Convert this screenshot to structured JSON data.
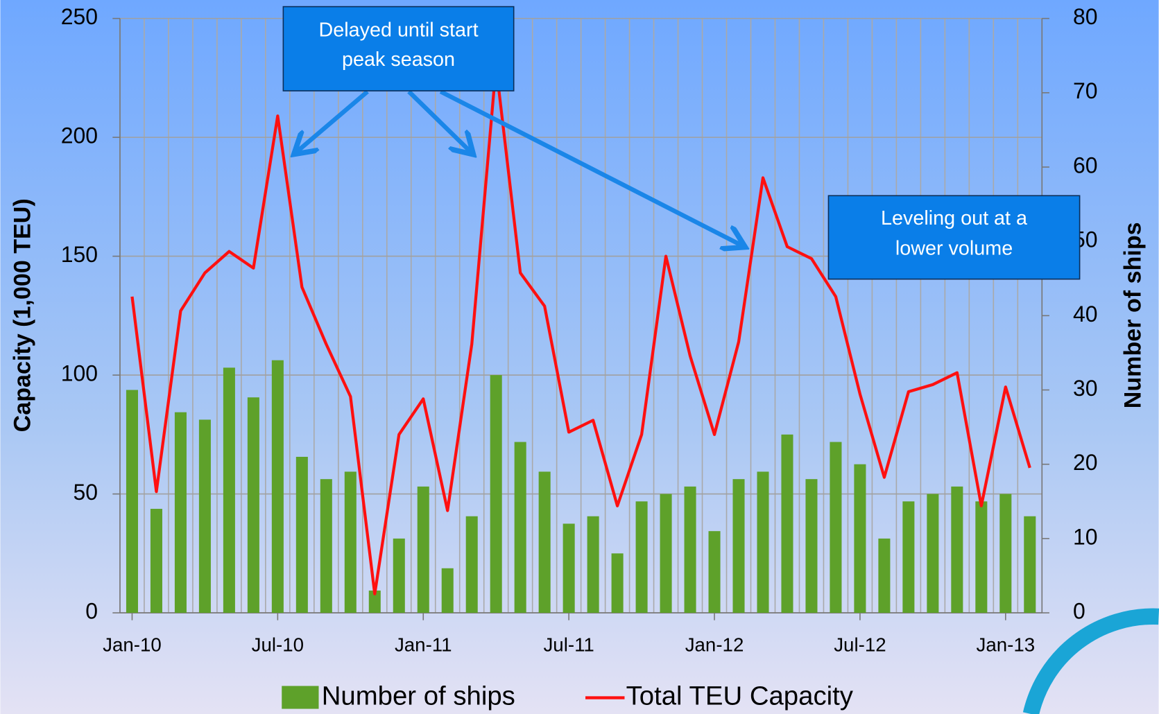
{
  "chart_data": {
    "type": "bar_line",
    "y_label": "Capacity (1,000 TEU)",
    "y2_label": "Number of ships",
    "categories": [
      "Jan-10",
      null,
      null,
      null,
      null,
      null,
      "Jul-10",
      null,
      null,
      null,
      null,
      null,
      "Jan-11",
      null,
      null,
      null,
      null,
      null,
      "Jul-11",
      null,
      null,
      null,
      null,
      null,
      "Jan-12",
      null,
      null,
      null,
      null,
      null,
      "Jul-12",
      null,
      null,
      null,
      null,
      null,
      "Jan-13",
      null
    ],
    "series": [
      {
        "name": "Number of ships",
        "type": "bar",
        "axis": "y2",
        "color": "#5ea12a",
        "values": [
          30,
          14,
          27,
          26,
          33,
          29,
          34,
          21,
          18,
          19,
          3,
          10,
          17,
          6,
          13,
          32,
          23,
          19,
          12,
          13,
          8,
          15,
          16,
          17,
          11,
          18,
          19,
          24,
          18,
          23,
          20,
          10,
          15,
          16,
          17,
          15,
          16,
          13
        ]
      },
      {
        "name": "Total TEU Capacity",
        "type": "line",
        "color": "#ff1010",
        "values": [
          133,
          51,
          127,
          143,
          152,
          145,
          209,
          137,
          113,
          91,
          8,
          75,
          90,
          43,
          113,
          230,
          143,
          129,
          76,
          81,
          45,
          75,
          150,
          108,
          75,
          114,
          183,
          154,
          149,
          133,
          92,
          57,
          93,
          96,
          101,
          45,
          95,
          61
        ]
      }
    ],
    "ylim": [
      0,
      250
    ],
    "yticks": [
      0,
      50,
      100,
      150,
      200,
      250
    ],
    "y2lim": [
      0,
      80
    ],
    "y2ticks": [
      0,
      10,
      20,
      30,
      40,
      50,
      60,
      70,
      80
    ],
    "grid": true,
    "legend": "bottom",
    "annotations": [
      {
        "text": [
          "Delayed until start",
          "peak season"
        ]
      },
      {
        "text": [
          "Leveling out at a",
          "lower volume"
        ]
      }
    ]
  }
}
